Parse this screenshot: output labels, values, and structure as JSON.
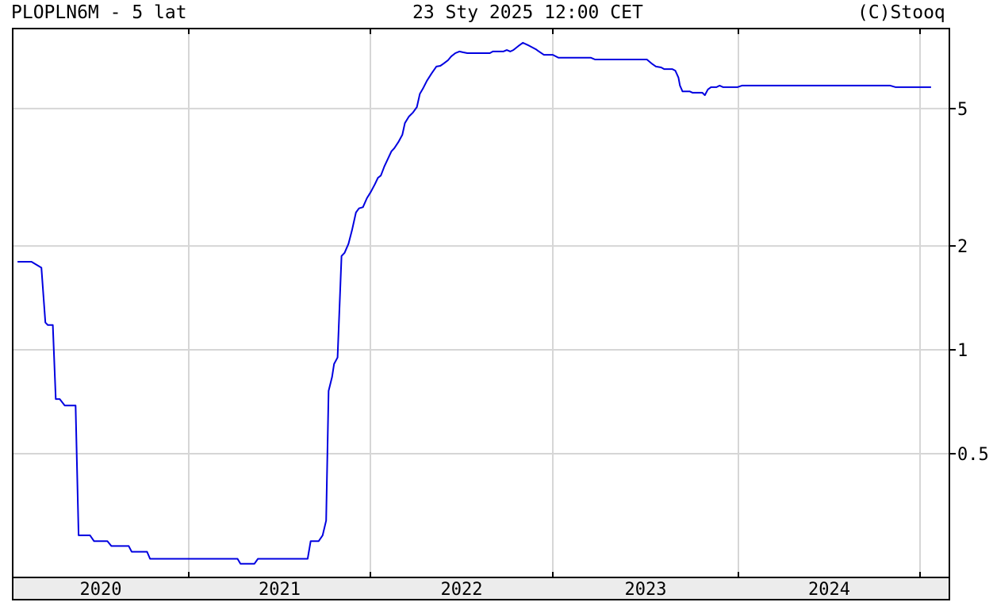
{
  "header": {
    "symbol_title": "PLOPLN6M - 5 lat",
    "timestamp": "23 Sty 2025 12:00 CET",
    "copyright": "(C)Stooq"
  },
  "chart_data": {
    "type": "line",
    "title": "PLOPLN6M - 5 lat",
    "xlabel": "",
    "ylabel": "",
    "y_scale": "log",
    "ylim": [
      0.219,
      8.53
    ],
    "y_ticks": [
      0.5,
      1,
      2,
      5
    ],
    "y_tick_labels": [
      "0.5",
      "1",
      "2",
      "5"
    ],
    "y_axis_side": "right",
    "x_tick_labels": [
      "2020",
      "2021",
      "2022",
      "2023",
      "2024"
    ],
    "xlim": [
      "2020-01-11",
      "2025-03-01"
    ],
    "grid": true,
    "line_color": "#0000e0",
    "series": [
      {
        "points": [
          [
            "2020-01-22",
            1.8
          ],
          [
            "2020-02-19",
            1.8
          ],
          [
            "2020-03-10",
            1.73
          ],
          [
            "2020-03-18",
            1.2
          ],
          [
            "2020-03-23",
            1.18
          ],
          [
            "2020-04-02",
            1.18
          ],
          [
            "2020-04-08",
            0.72
          ],
          [
            "2020-04-16",
            0.72
          ],
          [
            "2020-04-26",
            0.69
          ],
          [
            "2020-05-18",
            0.69
          ],
          [
            "2020-05-24",
            0.29
          ],
          [
            "2020-06-16",
            0.29
          ],
          [
            "2020-06-24",
            0.279
          ],
          [
            "2020-07-21",
            0.279
          ],
          [
            "2020-07-29",
            0.27
          ],
          [
            "2020-09-02",
            0.27
          ],
          [
            "2020-09-08",
            0.26
          ],
          [
            "2020-10-09",
            0.26
          ],
          [
            "2020-10-15",
            0.248
          ],
          [
            "2021-04-09",
            0.248
          ],
          [
            "2021-04-15",
            0.24
          ],
          [
            "2021-05-13",
            0.24
          ],
          [
            "2021-05-20",
            0.248
          ],
          [
            "2021-08-28",
            0.248
          ],
          [
            "2021-09-03",
            0.279
          ],
          [
            "2021-09-19",
            0.279
          ],
          [
            "2021-09-27",
            0.29
          ],
          [
            "2021-10-04",
            0.32
          ],
          [
            "2021-10-09",
            0.76
          ],
          [
            "2021-10-16",
            0.835
          ],
          [
            "2021-10-20",
            0.91
          ],
          [
            "2021-10-27",
            0.95
          ],
          [
            "2021-11-04",
            1.87
          ],
          [
            "2021-11-10",
            1.91
          ],
          [
            "2021-11-18",
            2.03
          ],
          [
            "2021-11-25",
            2.22
          ],
          [
            "2021-12-03",
            2.5
          ],
          [
            "2021-12-09",
            2.57
          ],
          [
            "2021-12-17",
            2.59
          ],
          [
            "2021-12-25",
            2.75
          ],
          [
            "2022-01-02",
            2.87
          ],
          [
            "2022-01-10",
            3.02
          ],
          [
            "2022-01-16",
            3.15
          ],
          [
            "2022-01-22",
            3.2
          ],
          [
            "2022-01-29",
            3.4
          ],
          [
            "2022-02-12",
            3.76
          ],
          [
            "2022-02-18",
            3.84
          ],
          [
            "2022-02-26",
            4.0
          ],
          [
            "2022-03-06",
            4.2
          ],
          [
            "2022-03-11",
            4.54
          ],
          [
            "2022-03-19",
            4.74
          ],
          [
            "2022-03-27",
            4.87
          ],
          [
            "2022-04-04",
            5.05
          ],
          [
            "2022-04-10",
            5.52
          ],
          [
            "2022-04-16",
            5.71
          ],
          [
            "2022-04-24",
            6.02
          ],
          [
            "2022-05-04",
            6.34
          ],
          [
            "2022-05-13",
            6.62
          ],
          [
            "2022-05-21",
            6.65
          ],
          [
            "2022-05-28",
            6.76
          ],
          [
            "2022-06-05",
            6.9
          ],
          [
            "2022-06-12",
            7.09
          ],
          [
            "2022-06-20",
            7.24
          ],
          [
            "2022-06-28",
            7.32
          ],
          [
            "2022-07-05",
            7.28
          ],
          [
            "2022-07-14",
            7.24
          ],
          [
            "2022-08-28",
            7.24
          ],
          [
            "2022-09-03",
            7.32
          ],
          [
            "2022-09-24",
            7.32
          ],
          [
            "2022-10-01",
            7.39
          ],
          [
            "2022-10-08",
            7.32
          ],
          [
            "2022-10-14",
            7.39
          ],
          [
            "2022-10-24",
            7.59
          ],
          [
            "2022-11-02",
            7.76
          ],
          [
            "2022-11-12",
            7.64
          ],
          [
            "2022-11-28",
            7.43
          ],
          [
            "2022-12-02",
            7.36
          ],
          [
            "2022-12-14",
            7.16
          ],
          [
            "2023-01-01",
            7.16
          ],
          [
            "2023-01-12",
            7.02
          ],
          [
            "2023-03-17",
            7.02
          ],
          [
            "2023-03-25",
            6.94
          ],
          [
            "2023-07-05",
            6.94
          ],
          [
            "2023-07-14",
            6.76
          ],
          [
            "2023-07-23",
            6.62
          ],
          [
            "2023-08-02",
            6.58
          ],
          [
            "2023-08-08",
            6.51
          ],
          [
            "2023-08-24",
            6.51
          ],
          [
            "2023-08-30",
            6.44
          ],
          [
            "2023-09-05",
            6.15
          ],
          [
            "2023-09-08",
            5.83
          ],
          [
            "2023-09-13",
            5.61
          ],
          [
            "2023-09-27",
            5.61
          ],
          [
            "2023-10-03",
            5.56
          ],
          [
            "2023-10-22",
            5.56
          ],
          [
            "2023-10-27",
            5.47
          ],
          [
            "2023-11-02",
            5.68
          ],
          [
            "2023-11-08",
            5.77
          ],
          [
            "2023-11-19",
            5.77
          ],
          [
            "2023-11-25",
            5.83
          ],
          [
            "2023-12-02",
            5.77
          ],
          [
            "2023-12-30",
            5.77
          ],
          [
            "2024-01-08",
            5.83
          ],
          [
            "2024-11-02",
            5.83
          ],
          [
            "2024-11-13",
            5.77
          ],
          [
            "2025-01-23",
            5.77
          ]
        ]
      }
    ]
  }
}
